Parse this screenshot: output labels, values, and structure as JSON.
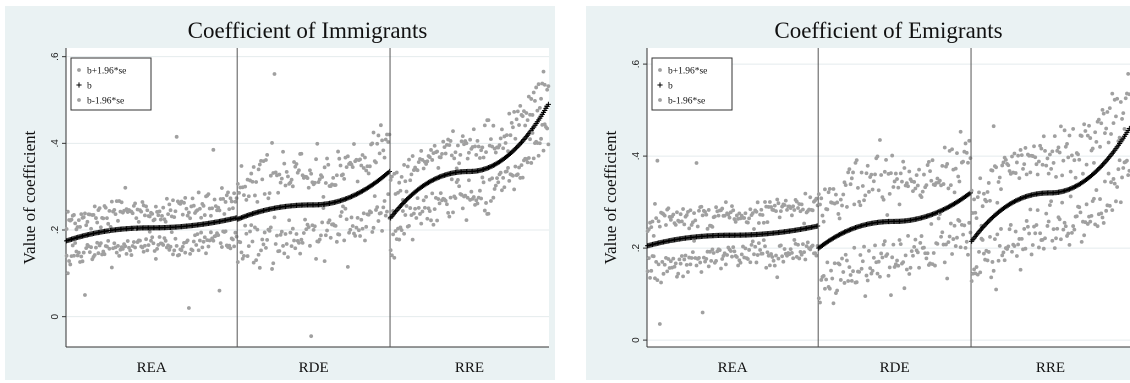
{
  "chart_data": [
    {
      "type": "scatter",
      "title": "Coefficient of Immigrants",
      "xlabel": "",
      "ylabel": "Value of coefficient",
      "ylim": [
        -0.07,
        0.62
      ],
      "yticks": [
        0,
        0.2,
        0.4,
        0.6
      ],
      "ytick_labels": [
        "0",
        ".2",
        ".4",
        ".6"
      ],
      "grid": true,
      "legend_position": "top-left",
      "categories": [
        "REA",
        "RDE",
        "RRE"
      ],
      "category_sizes": [
        140,
        125,
        130
      ],
      "series": [
        {
          "name": "b+1.96*se",
          "marker": "dot",
          "color": "#a0a0a0"
        },
        {
          "name": "b",
          "marker": "plus",
          "color": "#000000"
        },
        {
          "name": "b-1.96*se",
          "marker": "dot",
          "color": "#a0a0a0"
        }
      ],
      "b_curve": {
        "REA": {
          "start": 0.175,
          "mid": 0.205,
          "end": 0.228
        },
        "RDE": {
          "start": 0.225,
          "mid": 0.258,
          "end": 0.335
        },
        "RRE": {
          "start": 0.228,
          "mid": 0.335,
          "end": 0.49
        }
      },
      "band_halfwidth": {
        "REA": 0.04,
        "RDE": 0.075,
        "RRE": 0.06
      },
      "outliers": [
        {
          "category": "RDE",
          "index": 30,
          "y": 0.56
        },
        {
          "category": "RDE",
          "index": 60,
          "y": -0.045
        },
        {
          "category": "REA",
          "index": 90,
          "y": 0.415
        },
        {
          "category": "REA",
          "index": 100,
          "y": 0.02
        },
        {
          "category": "REA",
          "index": 15,
          "y": 0.05
        },
        {
          "category": "REA",
          "index": 120,
          "y": 0.385
        },
        {
          "category": "REA",
          "index": 125,
          "y": 0.06
        }
      ],
      "seed": 7
    },
    {
      "type": "scatter",
      "title": "Coefficient of Emigrants",
      "xlabel": "",
      "ylabel": "Value of coefficient",
      "ylim": [
        -0.015,
        0.635
      ],
      "yticks": [
        0,
        0.2,
        0.4,
        0.6
      ],
      "ytick_labels": [
        "0",
        ".2",
        ".4",
        ".6"
      ],
      "grid": true,
      "legend_position": "top-left",
      "categories": [
        "REA",
        "RDE",
        "RRE"
      ],
      "category_sizes": [
        140,
        125,
        130
      ],
      "series": [
        {
          "name": "b+1.96*se",
          "marker": "dot",
          "color": "#a0a0a0"
        },
        {
          "name": "b",
          "marker": "plus",
          "color": "#000000"
        },
        {
          "name": "b-1.96*se",
          "marker": "dot",
          "color": "#a0a0a0"
        }
      ],
      "b_curve": {
        "REA": {
          "start": 0.205,
          "mid": 0.228,
          "end": 0.248
        },
        "RDE": {
          "start": 0.2,
          "mid": 0.258,
          "end": 0.32
        },
        "RRE": {
          "start": 0.215,
          "mid": 0.32,
          "end": 0.46
        }
      },
      "band_halfwidth": {
        "REA": 0.045,
        "RDE": 0.085,
        "RRE": 0.075
      },
      "outliers": [
        {
          "category": "REA",
          "index": 8,
          "y": 0.39
        },
        {
          "category": "REA",
          "index": 10,
          "y": 0.035
        },
        {
          "category": "REA",
          "index": 40,
          "y": 0.385
        },
        {
          "category": "REA",
          "index": 45,
          "y": 0.06
        },
        {
          "category": "RDE",
          "index": 50,
          "y": 0.435
        },
        {
          "category": "RDE",
          "index": 12,
          "y": 0.08
        },
        {
          "category": "RRE",
          "index": 20,
          "y": 0.11
        },
        {
          "category": "RRE",
          "index": 18,
          "y": 0.465
        }
      ],
      "seed": 13
    }
  ]
}
